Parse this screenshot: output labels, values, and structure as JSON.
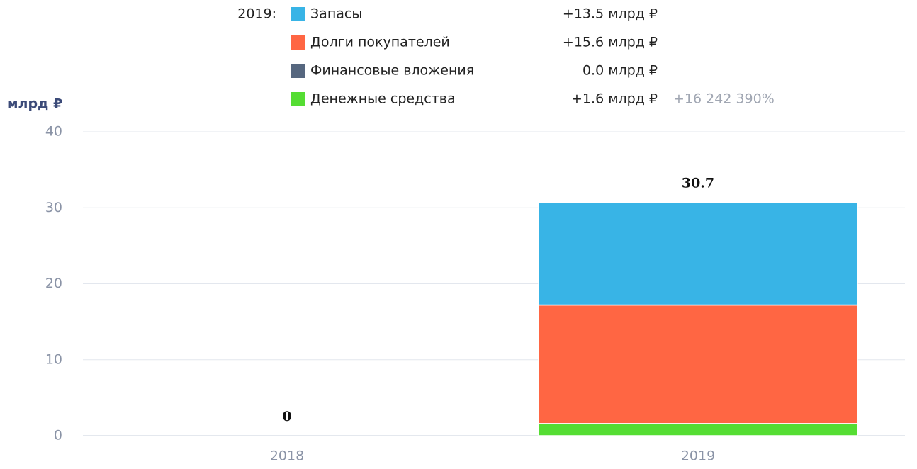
{
  "chart_data": {
    "type": "stacked_bar",
    "axis_label": "млрд ₽",
    "categories": [
      "2018",
      "2019"
    ],
    "legend_title": "2019:",
    "series": [
      {
        "name": "Запасы",
        "color": "#38b4e6",
        "values": [
          0,
          13.5
        ],
        "legend_value": "+13.5 млрд ₽"
      },
      {
        "name": "Долги покупателей",
        "color": "#ff6643",
        "values": [
          0,
          15.6
        ],
        "legend_value": "+15.6 млрд ₽"
      },
      {
        "name": "Финансовые вложения",
        "color": "#56677f",
        "values": [
          0,
          0.0
        ],
        "legend_value": "0.0 млрд ₽"
      },
      {
        "name": "Денежные средства",
        "color": "#55dd33",
        "values": [
          0,
          1.6
        ],
        "legend_value": "+1.6 млрд ₽",
        "legend_note": "+16 242 390%"
      }
    ],
    "totals": [
      0,
      30.7
    ],
    "ylim": [
      0,
      40
    ],
    "yticks": [
      0,
      10,
      20,
      30,
      40
    ],
    "grid": true
  }
}
